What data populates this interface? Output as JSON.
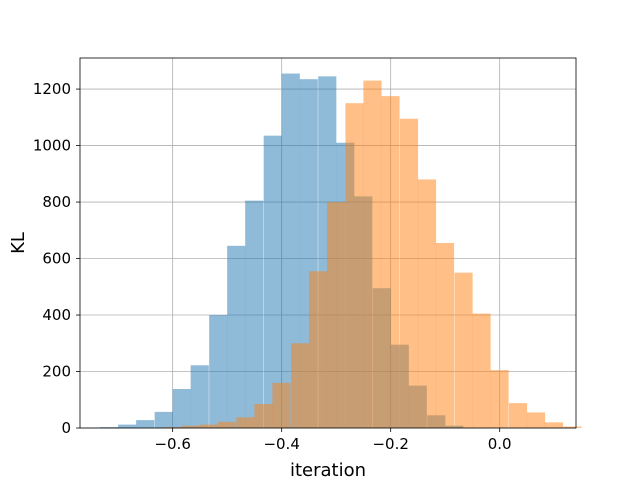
{
  "chart_data": {
    "type": "bar",
    "subtype": "overlaid-histogram",
    "title": "",
    "xlabel": "iteration",
    "ylabel": "KL",
    "xlim": [
      -0.77,
      0.14
    ],
    "ylim": [
      0,
      1310
    ],
    "grid": true,
    "legend": "none",
    "x_ticks": [
      -0.6,
      -0.4,
      -0.2,
      0.0
    ],
    "x_tick_labels": [
      "−0.6",
      "−0.4",
      "−0.2",
      "0.0"
    ],
    "y_ticks": [
      0,
      200,
      400,
      600,
      800,
      1000,
      1200
    ],
    "y_tick_labels": [
      "0",
      "200",
      "400",
      "600",
      "800",
      "1000",
      "1200"
    ],
    "series": [
      {
        "color": "#1f77b4",
        "alpha": 0.5,
        "bin_width": 0.0333,
        "bin_starts": [
          -0.733,
          -0.7,
          -0.667,
          -0.633,
          -0.6,
          -0.567,
          -0.533,
          -0.5,
          -0.467,
          -0.433,
          -0.4,
          -0.367,
          -0.333,
          -0.3,
          -0.267,
          -0.233,
          -0.2,
          -0.167,
          -0.133,
          -0.1
        ],
        "values": [
          3,
          12,
          28,
          57,
          138,
          222,
          400,
          645,
          805,
          1035,
          1255,
          1235,
          1245,
          1010,
          820,
          495,
          295,
          150,
          45,
          8
        ]
      },
      {
        "color": "#ff7f0e",
        "alpha": 0.5,
        "bin_width": 0.0333,
        "bin_starts": [
          -0.617,
          -0.583,
          -0.55,
          -0.517,
          -0.483,
          -0.45,
          -0.417,
          -0.383,
          -0.35,
          -0.317,
          -0.283,
          -0.25,
          -0.217,
          -0.183,
          -0.15,
          -0.117,
          -0.083,
          -0.05,
          -0.017,
          0.017,
          0.05,
          0.083,
          0.117
        ],
        "values": [
          3,
          8,
          12,
          22,
          38,
          85,
          160,
          300,
          555,
          800,
          1150,
          1230,
          1175,
          1095,
          880,
          655,
          550,
          405,
          205,
          88,
          55,
          20,
          5
        ]
      }
    ]
  }
}
